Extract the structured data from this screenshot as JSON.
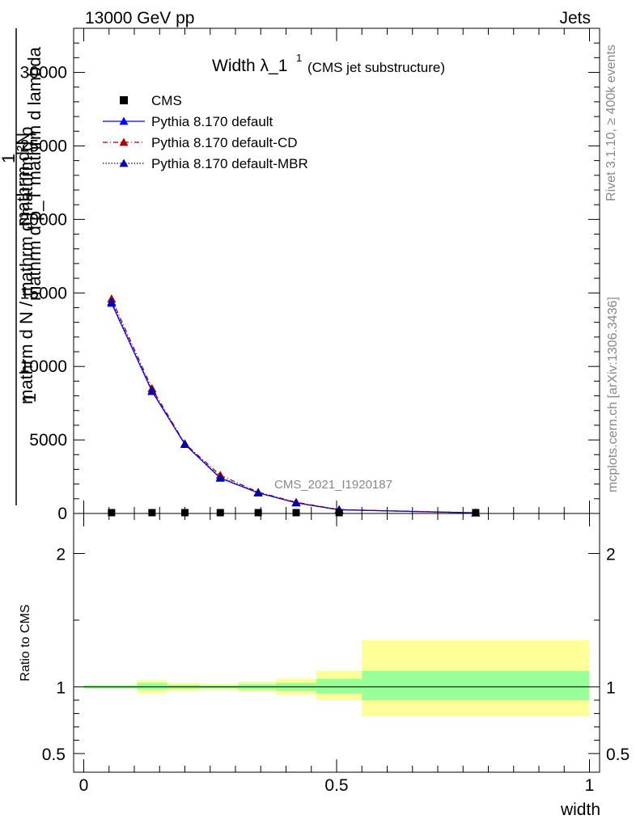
{
  "header": {
    "left": "13000 GeV pp",
    "right": "Jets"
  },
  "side_labels": {
    "rivet": "Rivet 3.1.10, ≥ 400k events",
    "mcplots": "mcplots.cern.ch [arXiv:1306.3436]"
  },
  "watermark": "CMS_2021_I1920187",
  "chart_data": [
    {
      "type": "line",
      "title": "Width λ_1",
      "title_sup": "1",
      "subtitle": "(CMS jet substructure)",
      "ylabel_num": "mathrm d²N",
      "ylabel_den": "mathrm d p_T mathrm d lambda",
      "ylabel_den_sub": "T",
      "ylabel_frac_num": "1",
      "ylabel_frac_den": "mathrm d N / mathrm d mathrm d p",
      "xlim": [
        -0.02,
        1.02
      ],
      "ylim": [
        0,
        33000
      ],
      "yticks": [
        0,
        5000,
        10000,
        15000,
        20000,
        25000,
        30000
      ],
      "ytick_labels": [
        "0",
        "5000",
        "10000",
        "15000",
        "20000",
        "25000",
        "30000"
      ],
      "legend": [
        {
          "label": "CMS",
          "color": "#000000",
          "marker": "square",
          "dash": "none"
        },
        {
          "label": "Pythia 8.170 default",
          "color": "#0000ff",
          "marker": "triangle",
          "dash": "solid"
        },
        {
          "label": "Pythia 8.170 default-CD",
          "color": "#aa0000",
          "marker": "triangle",
          "dash": "dashdot"
        },
        {
          "label": "Pythia 8.170 default-MBR",
          "color": "#0000aa",
          "marker": "triangle",
          "dash": "dotted"
        }
      ],
      "cms_points": {
        "x": [
          0.055,
          0.135,
          0.2,
          0.27,
          0.345,
          0.42,
          0.505,
          0.775
        ],
        "y": [
          0,
          0,
          0,
          0,
          0,
          0,
          0,
          0
        ]
      },
      "series": [
        {
          "name": "Pythia 8.170 default",
          "color": "#0000ff",
          "dash": "solid",
          "x": [
            0.055,
            0.135,
            0.2,
            0.27,
            0.345,
            0.42,
            0.505,
            0.775
          ],
          "y": [
            14300,
            8300,
            4700,
            2400,
            1400,
            720,
            250,
            40
          ]
        },
        {
          "name": "Pythia 8.170 default-CD",
          "color": "#aa0000",
          "dash": "dashdot",
          "x": [
            0.055,
            0.135,
            0.2,
            0.27,
            0.345,
            0.42,
            0.505,
            0.775
          ],
          "y": [
            14600,
            8500,
            4750,
            2600,
            1450,
            760,
            260,
            45
          ]
        },
        {
          "name": "Pythia 8.170 default-MBR",
          "color": "#0000aa",
          "dash": "dotted",
          "x": [
            0.055,
            0.135,
            0.2,
            0.27,
            0.345,
            0.42,
            0.505,
            0.775
          ],
          "y": [
            14400,
            8350,
            4720,
            2450,
            1420,
            730,
            255,
            42
          ]
        }
      ]
    },
    {
      "type": "area",
      "ylabel": "Ratio to CMS",
      "xlabel": "width",
      "xlim": [
        -0.02,
        1.02
      ],
      "ylim": [
        0.36,
        2.3
      ],
      "yticks": [
        0.5,
        1,
        2
      ],
      "ytick_labels": [
        "0.5",
        "1",
        "2"
      ],
      "xticks": [
        0,
        0.5,
        1
      ],
      "xtick_labels": [
        "0",
        "0.5",
        "1"
      ],
      "bands": [
        {
          "x0": 0.0,
          "x1": 0.105,
          "inner": [
            0.99,
            1.01
          ],
          "outer": [
            0.985,
            1.015
          ]
        },
        {
          "x0": 0.105,
          "x1": 0.165,
          "inner": [
            0.98,
            1.03
          ],
          "outer": [
            0.95,
            1.05
          ]
        },
        {
          "x0": 0.165,
          "x1": 0.23,
          "inner": [
            0.985,
            1.015
          ],
          "outer": [
            0.97,
            1.03
          ]
        },
        {
          "x0": 0.23,
          "x1": 0.305,
          "inner": [
            0.99,
            1.01
          ],
          "outer": [
            0.98,
            1.02
          ]
        },
        {
          "x0": 0.305,
          "x1": 0.38,
          "inner": [
            0.98,
            1.02
          ],
          "outer": [
            0.96,
            1.04
          ]
        },
        {
          "x0": 0.38,
          "x1": 0.46,
          "inner": [
            0.97,
            1.03
          ],
          "outer": [
            0.94,
            1.06
          ]
        },
        {
          "x0": 0.46,
          "x1": 0.55,
          "inner": [
            0.95,
            1.06
          ],
          "outer": [
            0.9,
            1.12
          ]
        },
        {
          "x0": 0.55,
          "x1": 1.0,
          "inner": [
            0.9,
            1.12
          ],
          "outer": [
            0.78,
            1.35
          ]
        }
      ],
      "band_colors": {
        "inner": "#99ff99",
        "outer": "#ffff99"
      },
      "reference_line": 1
    }
  ]
}
